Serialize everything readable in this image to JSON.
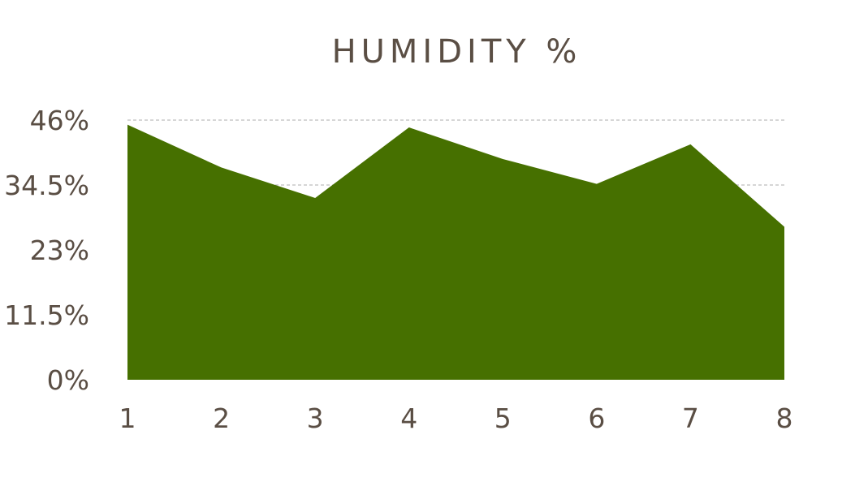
{
  "chart_data": {
    "type": "area",
    "title": "HUMIDITY %",
    "xlabel": "",
    "ylabel": "",
    "x": [
      1,
      2,
      3,
      4,
      5,
      6,
      7,
      8
    ],
    "x_tick_labels": [
      "1",
      "2",
      "3",
      "4",
      "5",
      "6",
      "7",
      "8"
    ],
    "series": [
      {
        "values": [
          45.2,
          37.6,
          32.2,
          44.7,
          39.1,
          34.7,
          41.7,
          27.1
        ]
      }
    ],
    "ylim": [
      0,
      46
    ],
    "y_ticks": [
      0,
      11.5,
      23,
      34.5,
      46
    ],
    "y_tick_labels": [
      "0%",
      "11.5%",
      "23%",
      "34.5%",
      "46%"
    ],
    "grid": true,
    "legend": "none",
    "colors": {
      "fill": "#467000",
      "text": "#5a4e44",
      "grid": "#bdbdbd"
    }
  }
}
